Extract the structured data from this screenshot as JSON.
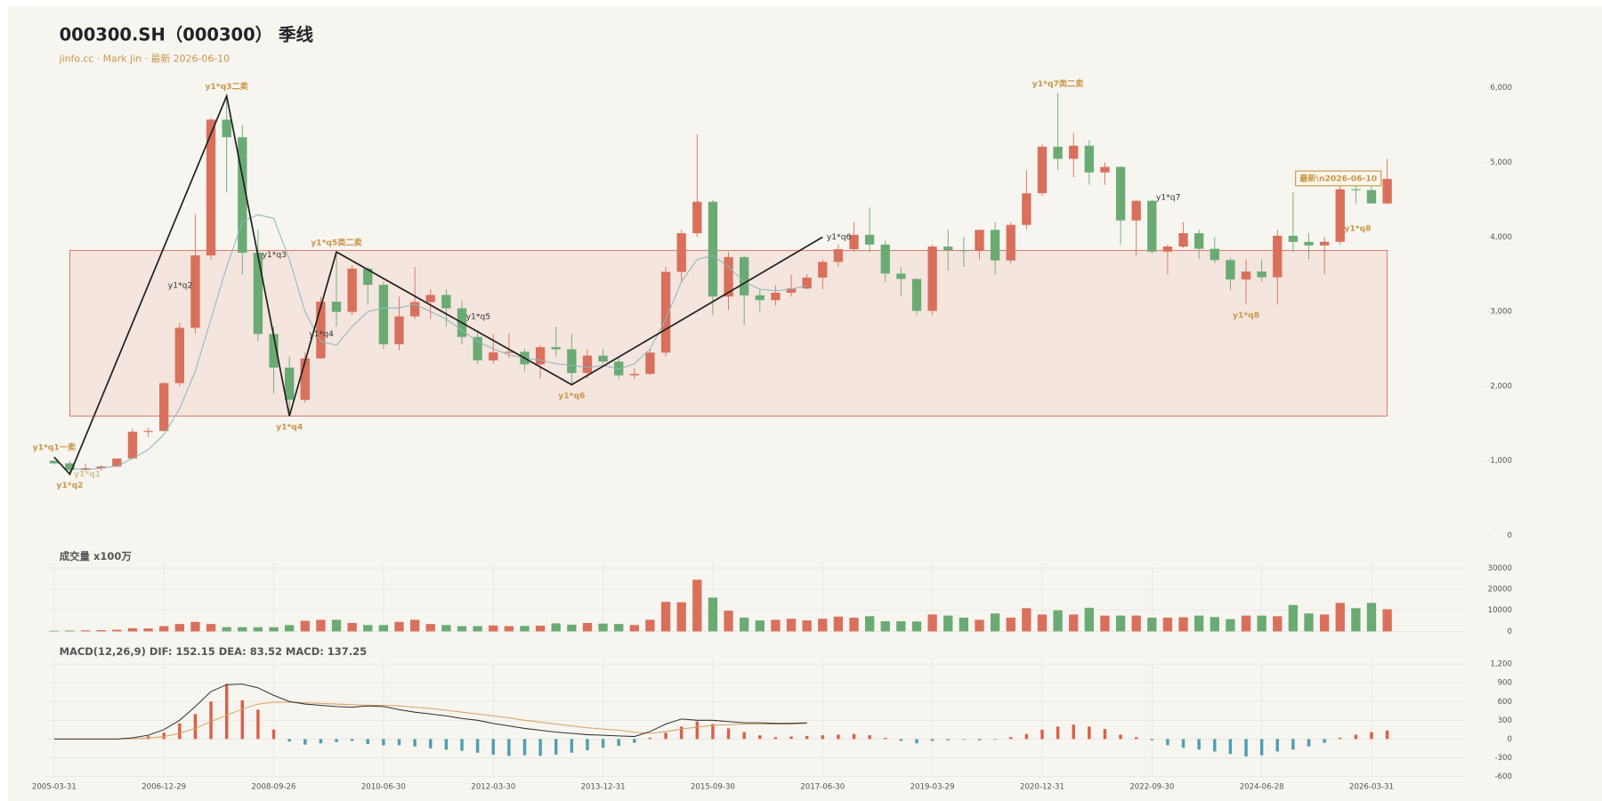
{
  "chart_data": [
    {
      "type": "candlestick",
      "title": "000300.SH（000300） 季线",
      "subtitle": "jinfo.cc · Mark Jin · 最新 2026-06-10",
      "categories": [
        "2005-03-31",
        null,
        null,
        null,
        null,
        null,
        null,
        "2006-12-29",
        null,
        null,
        null,
        null,
        null,
        null,
        "2008-09-26",
        null,
        null,
        null,
        null,
        null,
        null,
        "2010-06-30",
        null,
        null,
        null,
        null,
        null,
        null,
        "2012-03-30",
        null,
        null,
        null,
        null,
        null,
        null,
        "2013-12-31",
        null,
        null,
        null,
        null,
        null,
        null,
        "2015-09-30",
        null,
        null,
        null,
        null,
        null,
        null,
        "2017-06-30",
        null,
        null,
        null,
        null,
        null,
        null,
        "2019-03-29",
        null,
        null,
        null,
        null,
        null,
        null,
        "2020-12-31",
        null,
        null,
        null,
        null,
        null,
        null,
        "2022-09-30",
        null,
        null,
        null,
        null,
        null,
        null,
        "2024-06-28",
        null,
        null,
        null,
        null,
        null,
        null,
        "2026-03-31",
        null
      ],
      "open": [
        1000,
        966,
        876,
        900,
        923,
        1030,
        1390,
        1400,
        2041,
        2782,
        3754,
        5574,
        5338,
        3790,
        2700,
        2250,
        1817,
        2373,
        3133,
        2996,
        3576,
        3359,
        2563,
        2936,
        3128,
        3224,
        3044,
        2660,
        2346,
        2455,
        2461,
        2293,
        2523,
        2495,
        2177,
        2410,
        2330,
        2146,
        2165,
        2450,
        3533,
        4051,
        4473,
        3202,
        3731,
        3218,
        3154,
        3253,
        3310,
        3456,
        3666,
        3837,
        4030,
        3899,
        3510,
        3438,
        3010,
        3872,
        3825,
        3814,
        4096,
        3686,
        4163,
        4587,
        5211,
        5048,
        5224,
        4866,
        4940,
        4222,
        4485,
        3804,
        3872,
        4051,
        3842,
        3690,
        3431,
        3537,
        3461,
        4017,
        3935,
        3887,
        3936,
        4640,
        4629,
        4450
      ],
      "high": [
        1009,
        1000,
        960,
        940,
        1030,
        1430,
        1440,
        2060,
        2850,
        4310,
        5600,
        5891,
        5500,
        4100,
        2800,
        2400,
        2450,
        3200,
        3800,
        3620,
        3600,
        3400,
        3200,
        3600,
        3300,
        3300,
        3150,
        2750,
        2700,
        2710,
        2500,
        2550,
        2800,
        2700,
        2500,
        2500,
        2400,
        2240,
        2500,
        3600,
        4100,
        5380,
        4500,
        3800,
        3750,
        3300,
        3350,
        3500,
        3500,
        3700,
        3900,
        4200,
        4400,
        3950,
        3600,
        3450,
        3900,
        4100,
        4000,
        4100,
        4200,
        4200,
        4900,
        5250,
        5930,
        5400,
        5300,
        5000,
        4950,
        4500,
        4500,
        3900,
        4200,
        4100,
        4000,
        3720,
        3700,
        3700,
        4100,
        4600,
        4050,
        4000,
        4700,
        4700,
        4800,
        5050
      ],
      "low": [
        945,
        807,
        860,
        869,
        910,
        1030,
        1320,
        1390,
        2000,
        2700,
        3700,
        4600,
        3500,
        2600,
        1900,
        1600,
        1780,
        2370,
        2800,
        2950,
        3100,
        2500,
        2480,
        2900,
        2900,
        2800,
        2560,
        2300,
        2300,
        2380,
        2200,
        2100,
        2400,
        2020,
        2100,
        2300,
        2100,
        2100,
        2150,
        2400,
        3400,
        4000,
        2950,
        3020,
        2820,
        3000,
        3080,
        3200,
        3300,
        3300,
        3600,
        3800,
        3800,
        3400,
        3200,
        2950,
        2950,
        3550,
        3600,
        3700,
        3500,
        3650,
        4100,
        4550,
        4900,
        4800,
        4700,
        4700,
        3900,
        3750,
        3780,
        3500,
        3850,
        3700,
        3650,
        3290,
        3100,
        3400,
        3100,
        3800,
        3700,
        3500,
        3900,
        4450,
        4450,
        4440
      ],
      "close": [
        966,
        876,
        900,
        923,
        1030,
        1390,
        1400,
        2041,
        2782,
        3754,
        5574,
        5338,
        3790,
        2700,
        2250,
        1817,
        2373,
        3133,
        2996,
        3576,
        3359,
        2563,
        2936,
        3128,
        3224,
        3044,
        2660,
        2346,
        2455,
        2461,
        2293,
        2523,
        2495,
        2177,
        2410,
        2330,
        2146,
        2165,
        2450,
        3533,
        4051,
        4473,
        3202,
        3731,
        3218,
        3154,
        3253,
        3310,
        3456,
        3666,
        3837,
        4030,
        3899,
        3510,
        3438,
        3010,
        3872,
        3825,
        3814,
        4096,
        3686,
        4163,
        4587,
        5211,
        5048,
        5224,
        4866,
        4940,
        4222,
        4485,
        3804,
        3872,
        4051,
        3842,
        3690,
        3431,
        3537,
        3461,
        4017,
        3935,
        3887,
        3936,
        4640,
        4629,
        4450,
        4780
      ],
      "up_color": "#d9705c",
      "down_color": "#6aab74",
      "ma": {
        "color": "#8ab8bd",
        "values": [
          null,
          900,
          880,
          900,
          930,
          1030,
          1150,
          1350,
          1700,
          2200,
          2900,
          3600,
          4200,
          4300,
          4250,
          3700,
          3000,
          2600,
          2550,
          2800,
          3000,
          3050,
          3050,
          3100,
          3000,
          2900,
          2750,
          2600,
          2500,
          2420,
          2380,
          2350,
          2300,
          2280,
          2250,
          2280,
          2230,
          2300,
          2500,
          2900,
          3400,
          3700,
          3750,
          3600,
          3400,
          3300,
          3280,
          3300,
          3350,
          null,
          null,
          null,
          null,
          null,
          null,
          null,
          null,
          null,
          null,
          null,
          null,
          null,
          null,
          null,
          null,
          null,
          null,
          null,
          null,
          null,
          null,
          null,
          null,
          null,
          null,
          null,
          null,
          null,
          null,
          null,
          null,
          null,
          null,
          null,
          null,
          null
        ]
      },
      "waves": {
        "color": "#222222",
        "index": [
          0,
          1,
          11,
          15,
          18,
          33,
          49
        ],
        "values": [
          1050,
          820,
          5891,
          1600,
          3800,
          2020,
          4000
        ]
      },
      "zone": {
        "from": 1,
        "to": 85,
        "low": 1600,
        "high": 3820,
        "color": "#f3e2da",
        "border": "#d9705c"
      },
      "annotations": [
        {
          "text": "y1*q1一卖",
          "index": 0,
          "value": 1050,
          "place": "above",
          "color": "#c9974a"
        },
        {
          "text": "y1*q1",
          "index": 1,
          "value": 820,
          "place": "right",
          "color": "#d8c48a"
        },
        {
          "text": "y1*q2",
          "index": 1,
          "value": 820,
          "place": "below",
          "color": "#c9974a"
        },
        {
          "text": "y1*q3二卖",
          "index": 11,
          "value": 5891,
          "place": "above",
          "color": "#c9974a"
        },
        {
          "text": "y1*q2",
          "index": 7,
          "value": 3350,
          "place": "right",
          "color": "#333333"
        },
        {
          "text": "y1*q3",
          "index": 13,
          "value": 3760,
          "place": "right",
          "color": "#333333"
        },
        {
          "text": "y1*q4",
          "index": 15,
          "value": 1600,
          "place": "below",
          "color": "#c9974a"
        },
        {
          "text": "y1*q5类二卖",
          "index": 18,
          "value": 3800,
          "place": "above",
          "color": "#c9974a"
        },
        {
          "text": "y1*q4",
          "index": 16,
          "value": 2700,
          "place": "right",
          "color": "#333333"
        },
        {
          "text": "y1*q5",
          "index": 26,
          "value": 2930,
          "place": "right",
          "color": "#333333"
        },
        {
          "text": "y1*q6",
          "index": 33,
          "value": 2020,
          "place": "below",
          "color": "#c9974a"
        },
        {
          "text": "y1*q6",
          "index": 49,
          "value": 4000,
          "place": "right",
          "color": "#333333"
        },
        {
          "text": "y1*q7类二卖",
          "index": 64,
          "value": 5930,
          "place": "above",
          "color": "#c9974a"
        },
        {
          "text": "y1*q7",
          "index": 70,
          "value": 4530,
          "place": "right",
          "color": "#333333"
        },
        {
          "text": "y1*q8",
          "index": 76,
          "value": 3100,
          "place": "below",
          "color": "#c9974a"
        },
        {
          "text": "y1*q8",
          "index": 82,
          "value": 4110,
          "place": "right",
          "color": "#c9974a"
        },
        {
          "text": "最新\\n2026-06-10",
          "index": 85,
          "value": 4780,
          "place": "left",
          "boxed": true,
          "color": "#c9974a"
        }
      ],
      "ylim": [
        0,
        6000
      ],
      "yticks": [
        0,
        {
          "value": 1000,
          "label": "1,000"
        },
        {
          "value": 2000,
          "label": "2,000"
        },
        {
          "value": 3000,
          "label": "3,000"
        },
        {
          "value": 4000,
          "label": "4,000"
        },
        {
          "value": 5000,
          "label": "5,000"
        },
        {
          "value": 6000,
          "label": "6,000"
        }
      ],
      "grid": false
    },
    {
      "type": "bar",
      "title": "成交量 x100万",
      "values": [
        300,
        400,
        500,
        600,
        800,
        1500,
        1400,
        2500,
        3500,
        4500,
        3500,
        2000,
        2000,
        2000,
        2000,
        3000,
        5000,
        5500,
        5500,
        4000,
        3000,
        3000,
        4500,
        5500,
        3500,
        3000,
        2500,
        2500,
        2800,
        2500,
        2600,
        2700,
        3800,
        3200,
        4000,
        3700,
        3500,
        3000,
        5500,
        14000,
        13800,
        24500,
        16000,
        9800,
        6500,
        5200,
        5500,
        6000,
        5200,
        6000,
        7000,
        6500,
        7200,
        4800,
        4800,
        4700,
        8000,
        7500,
        6500,
        5500,
        8500,
        6500,
        11000,
        8000,
        10000,
        8000,
        11200,
        7500,
        7500,
        7500,
        6500,
        6500,
        6700,
        7500,
        6800,
        5800,
        7500,
        7500,
        7200,
        12500,
        8500,
        8000,
        13500,
        11000,
        13500,
        10500
      ],
      "ylim": [
        0,
        30000
      ],
      "yticks": [
        0,
        10000,
        20000,
        30000
      ],
      "grid": true,
      "xgrid": true
    },
    {
      "type": "macd",
      "title": "MACD(12,26,9) DIF: 152.15 DEA: 83.52 MACD: 137.25",
      "dif": {
        "color": "#333333",
        "values": [
          0,
          0,
          0,
          0,
          0,
          20,
          60,
          150,
          300,
          520,
          760,
          870,
          880,
          820,
          700,
          600,
          560,
          540,
          520,
          510,
          530,
          520,
          470,
          430,
          400,
          370,
          330,
          300,
          250,
          210,
          170,
          140,
          110,
          90,
          70,
          60,
          50,
          40,
          120,
          240,
          320,
          300,
          300,
          280,
          260,
          260,
          250,
          250,
          260,
          null,
          null,
          null,
          null,
          null,
          null,
          null,
          null,
          null,
          null,
          null,
          null,
          null,
          null,
          null,
          null,
          null,
          null,
          null,
          null,
          null,
          null,
          null,
          null,
          null,
          null,
          null,
          null,
          null,
          null,
          null,
          null,
          null,
          null,
          null,
          null,
          null
        ]
      },
      "dea": {
        "color": "#d9a15f",
        "values": [
          0,
          0,
          0,
          0,
          0,
          5,
          15,
          40,
          90,
          170,
          280,
          380,
          480,
          560,
          590,
          590,
          580,
          570,
          560,
          550,
          540,
          540,
          530,
          510,
          490,
          460,
          430,
          400,
          370,
          340,
          300,
          270,
          240,
          210,
          180,
          160,
          140,
          110,
          90,
          120,
          160,
          190,
          220,
          230,
          240,
          240,
          240,
          240,
          250,
          null,
          null,
          null,
          null,
          null,
          null,
          null,
          null,
          null,
          null,
          null,
          null,
          null,
          null,
          null,
          null,
          null,
          null,
          null,
          null,
          null,
          null,
          null,
          null,
          null,
          null,
          null,
          null,
          null,
          null,
          null,
          null,
          null,
          null,
          null,
          null,
          null
        ]
      },
      "hist": {
        "up_color": "#d9604a",
        "down_color": "#4f9fb0",
        "values": [
          0,
          0,
          0,
          2,
          5,
          20,
          45,
          100,
          250,
          400,
          600,
          880,
          620,
          470,
          150,
          -40,
          -90,
          -70,
          -50,
          -30,
          -80,
          -100,
          -100,
          -120,
          -150,
          -170,
          -190,
          -220,
          -250,
          -270,
          -260,
          -270,
          -250,
          -220,
          -180,
          -140,
          -110,
          -60,
          20,
          100,
          200,
          280,
          240,
          170,
          110,
          60,
          30,
          40,
          50,
          60,
          70,
          80,
          60,
          20,
          -30,
          -70,
          -30,
          -20,
          -10,
          -20,
          -10,
          30,
          80,
          150,
          200,
          230,
          200,
          160,
          70,
          30,
          -20,
          -100,
          -140,
          -170,
          -200,
          -240,
          -280,
          -260,
          -200,
          -170,
          -120,
          -60,
          20,
          70,
          110,
          137.25
        ]
      },
      "ylim": [
        -600,
        1200
      ],
      "yticks": [
        -600,
        -300,
        0,
        300,
        600,
        900,
        {
          "value": 1200,
          "label": "1,200"
        }
      ],
      "grid": true,
      "xgrid": true
    }
  ]
}
